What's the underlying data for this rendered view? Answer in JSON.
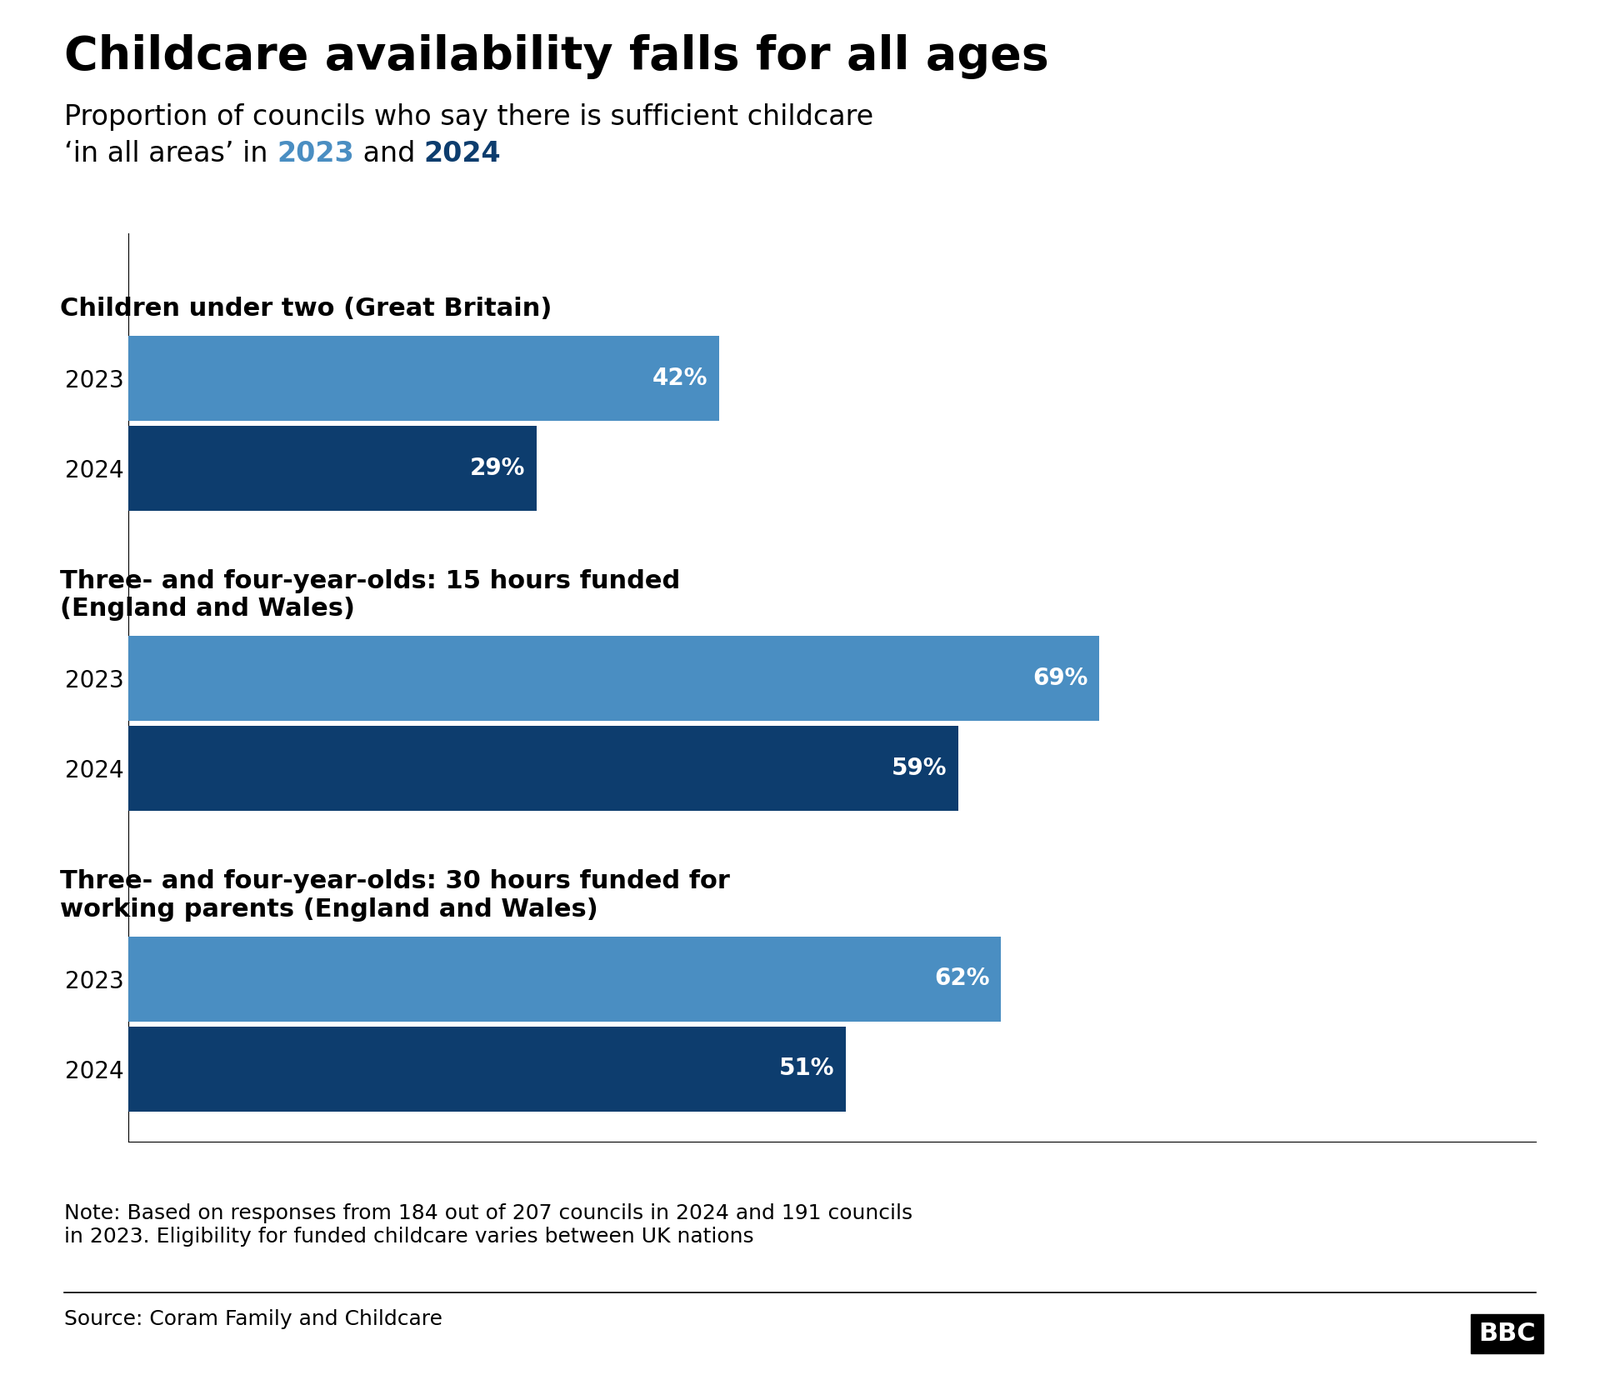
{
  "chart_data": {
    "type": "bar",
    "orientation": "horizontal",
    "title": "Childcare availability falls for all ages",
    "subtitle": "Proportion of councils who say there is sufficient childcare\n‘in all areas’ in 2023 and 2024",
    "categories": [
      "Children under two (Great Britain)",
      "Three- and four-year-olds: 15 hours funded\n(England and Wales)",
      "Three- and four-year-olds: 30 hours funded for\nworking parents (England and Wales)"
    ],
    "series": [
      {
        "name": "2023",
        "color": "#4a8ec2",
        "values": [
          42,
          69,
          62
        ],
        "value_labels": [
          "42%",
          "69%",
          "62%"
        ]
      },
      {
        "name": "2024",
        "color": "#0d3d6e",
        "values": [
          29,
          59,
          51
        ],
        "value_labels": [
          "29%",
          "59%",
          "51%"
        ]
      }
    ],
    "xlim": [
      0,
      100
    ],
    "xticks": [],
    "tick_labels": "y",
    "data_labels": true,
    "grid": false,
    "note": "Note: Based on responses from 184 out of 207 councils in 2024 and 191 councils\nin 2023. Eligibility for funded childcare varies between UK nations",
    "source": "Source: Coram Family and Childcare",
    "logo": "BBC"
  }
}
